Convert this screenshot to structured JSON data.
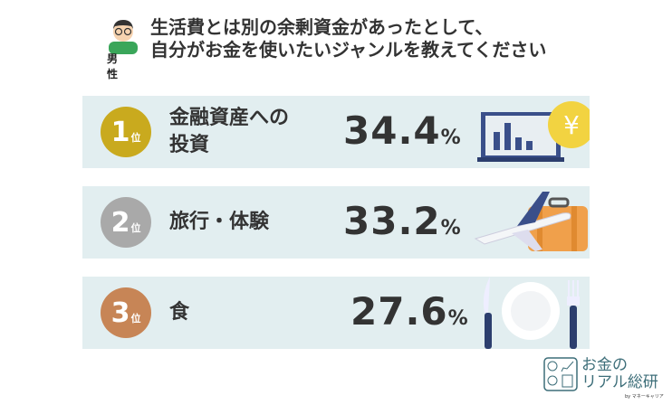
{
  "header": {
    "gender": "男性",
    "title_line1": "生活費とは別の余剰資金があったとして、",
    "title_line2": "自分がお金を使いたいジャンルを教えてください"
  },
  "colors": {
    "rank1": "#c9aa1e",
    "rank2": "#a9a9a9",
    "rank3": "#c78556",
    "row_bg": "#e2eef0"
  },
  "chart_data": {
    "type": "table",
    "categories": [
      "金融資産への投資",
      "旅行・体験",
      "食"
    ],
    "values": [
      34.4,
      33.2,
      27.6
    ],
    "unit": "%"
  },
  "ranks": [
    {
      "rank": "1",
      "suffix": "位",
      "label1": "金融資産への",
      "label2": "投資",
      "value": "34.4",
      "unit": "%",
      "icon": "laptop-chart-yen-coin-icon"
    },
    {
      "rank": "2",
      "suffix": "位",
      "label1": "旅行・体験",
      "value": "33.2",
      "unit": "%",
      "icon": "airplane-suitcase-icon"
    },
    {
      "rank": "3",
      "suffix": "位",
      "label1": "食",
      "value": "27.6",
      "unit": "%",
      "icon": "plate-knife-fork-icon"
    }
  ],
  "logo": {
    "line1": "お金の",
    "line2": "リアル総研",
    "by": "by マネーキャリア"
  }
}
